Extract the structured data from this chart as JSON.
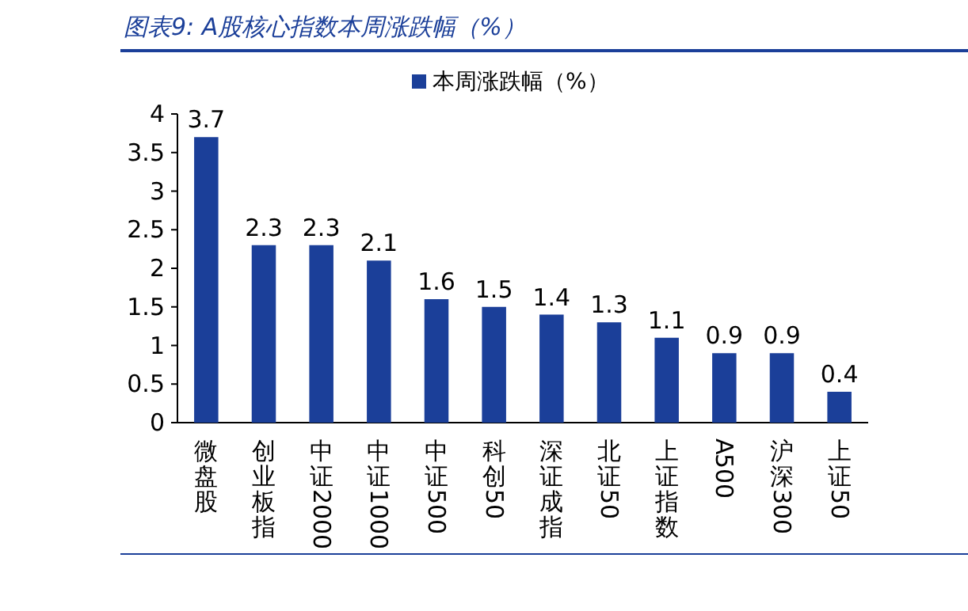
{
  "chart_data": {
    "type": "bar",
    "title": "图表9: A股核心指数本周涨跌幅（%）",
    "categories": [
      "微盘股",
      "创业板指",
      "中证2000",
      "中证1000",
      "中证500",
      "科创50",
      "深证成指",
      "北证50",
      "上证指数",
      "A500",
      "沪深300",
      "上证50"
    ],
    "series": [
      {
        "name": "本周涨跌幅（%）",
        "color": "#1b3f99",
        "values": [
          3.7,
          2.3,
          2.3,
          2.1,
          1.6,
          1.5,
          1.4,
          1.3,
          1.1,
          0.9,
          0.9,
          0.4
        ]
      }
    ],
    "ylim": [
      0,
      4
    ],
    "yticks": [
      0,
      0.5,
      1,
      1.5,
      2,
      2.5,
      3,
      3.5,
      4
    ],
    "data_labels": true,
    "legend": "top",
    "grid": false
  }
}
